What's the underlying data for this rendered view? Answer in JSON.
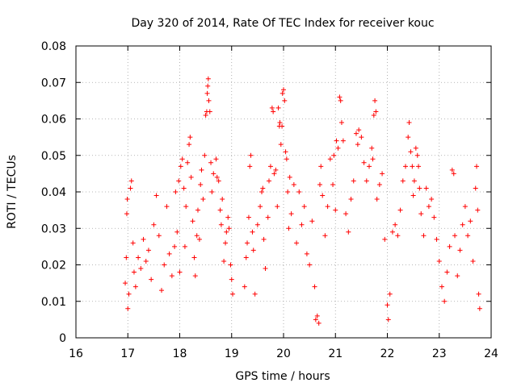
{
  "chart_data": {
    "type": "scatter",
    "title": "Day 320 of 2014, Rate Of TEC Index for receiver kouc",
    "xlabel": "GPS time / hours",
    "ylabel": "ROTI / TECUs",
    "xlim": [
      16,
      24
    ],
    "ylim": [
      0,
      0.08
    ],
    "xticks": [
      "16",
      "17",
      "18",
      "19",
      "20",
      "21",
      "22",
      "23",
      "24"
    ],
    "yticks": [
      "0",
      "0.01",
      "0.02",
      "0.03",
      "0.04",
      "0.05",
      "0.06",
      "0.07",
      "0.08"
    ],
    "grid": true,
    "marker": "+",
    "color": "#ff0000",
    "series": [
      {
        "name": "ROTI",
        "points": [
          [
            16.95,
            0.015
          ],
          [
            16.97,
            0.022
          ],
          [
            16.98,
            0.034
          ],
          [
            16.99,
            0.038
          ],
          [
            17.0,
            0.008
          ],
          [
            17.02,
            0.012
          ],
          [
            17.05,
            0.041
          ],
          [
            17.07,
            0.043
          ],
          [
            17.1,
            0.026
          ],
          [
            17.12,
            0.018
          ],
          [
            17.15,
            0.014
          ],
          [
            17.2,
            0.022
          ],
          [
            17.25,
            0.019
          ],
          [
            17.3,
            0.027
          ],
          [
            17.35,
            0.021
          ],
          [
            17.4,
            0.024
          ],
          [
            17.45,
            0.016
          ],
          [
            17.5,
            0.031
          ],
          [
            17.55,
            0.039
          ],
          [
            17.6,
            0.028
          ],
          [
            17.65,
            0.013
          ],
          [
            17.7,
            0.02
          ],
          [
            17.75,
            0.036
          ],
          [
            17.8,
            0.023
          ],
          [
            17.85,
            0.017
          ],
          [
            17.9,
            0.025
          ],
          [
            17.92,
            0.04
          ],
          [
            17.95,
            0.029
          ],
          [
            17.98,
            0.043
          ],
          [
            18.0,
            0.018
          ],
          [
            18.02,
            0.047
          ],
          [
            18.05,
            0.049
          ],
          [
            18.08,
            0.041
          ],
          [
            18.1,
            0.025
          ],
          [
            18.12,
            0.036
          ],
          [
            18.15,
            0.048
          ],
          [
            18.18,
            0.053
          ],
          [
            18.2,
            0.055
          ],
          [
            18.22,
            0.044
          ],
          [
            18.25,
            0.032
          ],
          [
            18.28,
            0.022
          ],
          [
            18.3,
            0.017
          ],
          [
            18.33,
            0.028
          ],
          [
            18.35,
            0.035
          ],
          [
            18.38,
            0.027
          ],
          [
            18.4,
            0.042
          ],
          [
            18.42,
            0.046
          ],
          [
            18.45,
            0.038
          ],
          [
            18.48,
            0.05
          ],
          [
            18.5,
            0.061
          ],
          [
            18.52,
            0.062
          ],
          [
            18.53,
            0.067
          ],
          [
            18.54,
            0.069
          ],
          [
            18.55,
            0.071
          ],
          [
            18.56,
            0.065
          ],
          [
            18.58,
            0.062
          ],
          [
            18.6,
            0.048
          ],
          [
            18.62,
            0.04
          ],
          [
            18.65,
            0.045
          ],
          [
            18.7,
            0.049
          ],
          [
            18.72,
            0.044
          ],
          [
            18.75,
            0.043
          ],
          [
            18.78,
            0.035
          ],
          [
            18.8,
            0.031
          ],
          [
            18.82,
            0.038
          ],
          [
            18.85,
            0.021
          ],
          [
            18.88,
            0.026
          ],
          [
            18.9,
            0.029
          ],
          [
            18.93,
            0.033
          ],
          [
            18.95,
            0.03
          ],
          [
            18.98,
            0.02
          ],
          [
            19.0,
            0.016
          ],
          [
            19.02,
            0.012
          ],
          [
            19.25,
            0.014
          ],
          [
            19.28,
            0.022
          ],
          [
            19.3,
            0.026
          ],
          [
            19.33,
            0.033
          ],
          [
            19.35,
            0.047
          ],
          [
            19.37,
            0.05
          ],
          [
            19.4,
            0.029
          ],
          [
            19.42,
            0.024
          ],
          [
            19.45,
            0.012
          ],
          [
            19.5,
            0.031
          ],
          [
            19.55,
            0.036
          ],
          [
            19.58,
            0.04
          ],
          [
            19.6,
            0.041
          ],
          [
            19.62,
            0.027
          ],
          [
            19.65,
            0.019
          ],
          [
            19.7,
            0.033
          ],
          [
            19.72,
            0.043
          ],
          [
            19.75,
            0.047
          ],
          [
            19.78,
            0.063
          ],
          [
            19.8,
            0.062
          ],
          [
            19.82,
            0.045
          ],
          [
            19.85,
            0.046
          ],
          [
            19.88,
            0.036
          ],
          [
            19.9,
            0.063
          ],
          [
            19.92,
            0.058
          ],
          [
            19.93,
            0.059
          ],
          [
            19.95,
            0.053
          ],
          [
            19.97,
            0.058
          ],
          [
            19.98,
            0.067
          ],
          [
            20.0,
            0.068
          ],
          [
            20.02,
            0.065
          ],
          [
            20.04,
            0.051
          ],
          [
            20.06,
            0.049
          ],
          [
            20.08,
            0.04
          ],
          [
            20.1,
            0.03
          ],
          [
            20.12,
            0.044
          ],
          [
            20.15,
            0.034
          ],
          [
            20.2,
            0.042
          ],
          [
            20.25,
            0.026
          ],
          [
            20.3,
            0.04
          ],
          [
            20.35,
            0.031
          ],
          [
            20.4,
            0.036
          ],
          [
            20.45,
            0.023
          ],
          [
            20.5,
            0.02
          ],
          [
            20.55,
            0.032
          ],
          [
            20.6,
            0.014
          ],
          [
            20.62,
            0.005
          ],
          [
            20.65,
            0.006
          ],
          [
            20.68,
            0.004
          ],
          [
            20.7,
            0.042
          ],
          [
            20.72,
            0.047
          ],
          [
            20.75,
            0.039
          ],
          [
            20.8,
            0.028
          ],
          [
            20.85,
            0.036
          ],
          [
            20.9,
            0.049
          ],
          [
            20.95,
            0.042
          ],
          [
            20.97,
            0.05
          ],
          [
            21.0,
            0.035
          ],
          [
            21.02,
            0.054
          ],
          [
            21.05,
            0.052
          ],
          [
            21.08,
            0.066
          ],
          [
            21.1,
            0.065
          ],
          [
            21.12,
            0.059
          ],
          [
            21.15,
            0.054
          ],
          [
            21.2,
            0.034
          ],
          [
            21.25,
            0.029
          ],
          [
            21.3,
            0.038
          ],
          [
            21.35,
            0.043
          ],
          [
            21.4,
            0.056
          ],
          [
            21.43,
            0.053
          ],
          [
            21.45,
            0.057
          ],
          [
            21.5,
            0.055
          ],
          [
            21.55,
            0.048
          ],
          [
            21.6,
            0.043
          ],
          [
            21.65,
            0.047
          ],
          [
            21.7,
            0.052
          ],
          [
            21.72,
            0.049
          ],
          [
            21.74,
            0.061
          ],
          [
            21.76,
            0.065
          ],
          [
            21.78,
            0.062
          ],
          [
            21.8,
            0.038
          ],
          [
            21.85,
            0.042
          ],
          [
            21.9,
            0.045
          ],
          [
            21.95,
            0.027
          ],
          [
            22.0,
            0.009
          ],
          [
            22.02,
            0.005
          ],
          [
            22.05,
            0.012
          ],
          [
            22.1,
            0.029
          ],
          [
            22.15,
            0.031
          ],
          [
            22.2,
            0.028
          ],
          [
            22.25,
            0.035
          ],
          [
            22.3,
            0.043
          ],
          [
            22.35,
            0.047
          ],
          [
            22.4,
            0.055
          ],
          [
            22.42,
            0.059
          ],
          [
            22.45,
            0.051
          ],
          [
            22.48,
            0.047
          ],
          [
            22.5,
            0.039
          ],
          [
            22.52,
            0.043
          ],
          [
            22.55,
            0.052
          ],
          [
            22.58,
            0.05
          ],
          [
            22.6,
            0.047
          ],
          [
            22.62,
            0.041
          ],
          [
            22.65,
            0.034
          ],
          [
            22.7,
            0.028
          ],
          [
            22.75,
            0.041
          ],
          [
            22.8,
            0.036
          ],
          [
            22.85,
            0.038
          ],
          [
            22.9,
            0.033
          ],
          [
            22.95,
            0.027
          ],
          [
            23.0,
            0.021
          ],
          [
            23.05,
            0.014
          ],
          [
            23.1,
            0.01
          ],
          [
            23.15,
            0.018
          ],
          [
            23.2,
            0.025
          ],
          [
            23.25,
            0.046
          ],
          [
            23.28,
            0.045
          ],
          [
            23.3,
            0.028
          ],
          [
            23.35,
            0.017
          ],
          [
            23.4,
            0.024
          ],
          [
            23.45,
            0.031
          ],
          [
            23.5,
            0.036
          ],
          [
            23.55,
            0.028
          ],
          [
            23.6,
            0.032
          ],
          [
            23.65,
            0.021
          ],
          [
            23.7,
            0.041
          ],
          [
            23.72,
            0.047
          ],
          [
            23.74,
            0.035
          ],
          [
            23.76,
            0.012
          ],
          [
            23.78,
            0.008
          ]
        ]
      }
    ]
  }
}
